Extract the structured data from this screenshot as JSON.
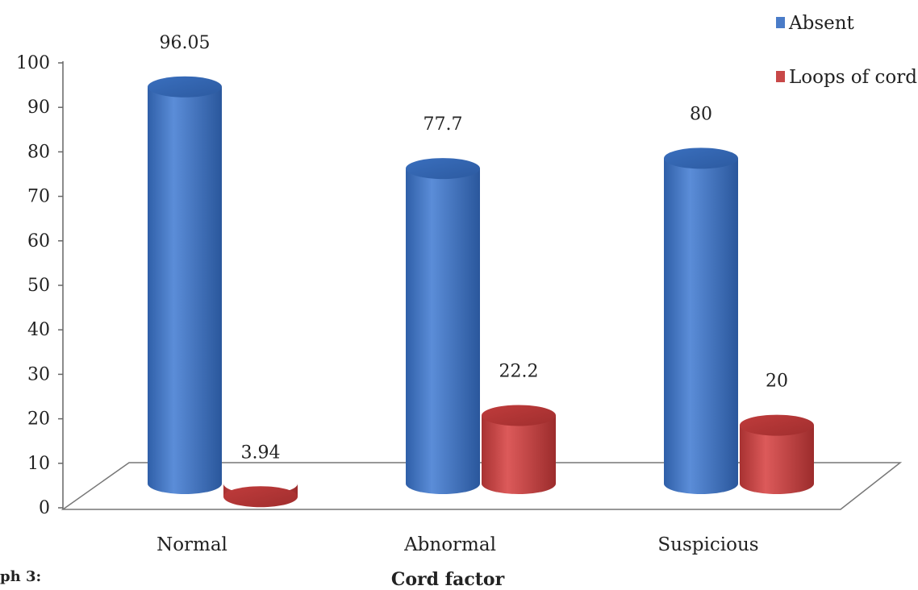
{
  "corner_text": "ph 3:",
  "chart_data": {
    "type": "bar",
    "title": "",
    "xlabel": "Cord factor",
    "ylabel": "",
    "ylim": [
      0,
      100
    ],
    "yticks": [
      0,
      10,
      20,
      30,
      40,
      50,
      60,
      70,
      80,
      90,
      100
    ],
    "categories": [
      "Normal",
      "Abnormal",
      "Suspicious"
    ],
    "series": [
      {
        "name": "Absent",
        "values": [
          96.05,
          77.7,
          80
        ],
        "labels": [
          "96.05",
          "77.7",
          "80"
        ],
        "color": "#4a7cc8"
      },
      {
        "name": "Loops of cord",
        "values": [
          3.94,
          22.2,
          20
        ],
        "labels": [
          "3.94",
          "22.2",
          "20"
        ],
        "color": "#c84848"
      }
    ],
    "legend_position": "top-right",
    "grid": false,
    "style": "3d-cylinder"
  }
}
